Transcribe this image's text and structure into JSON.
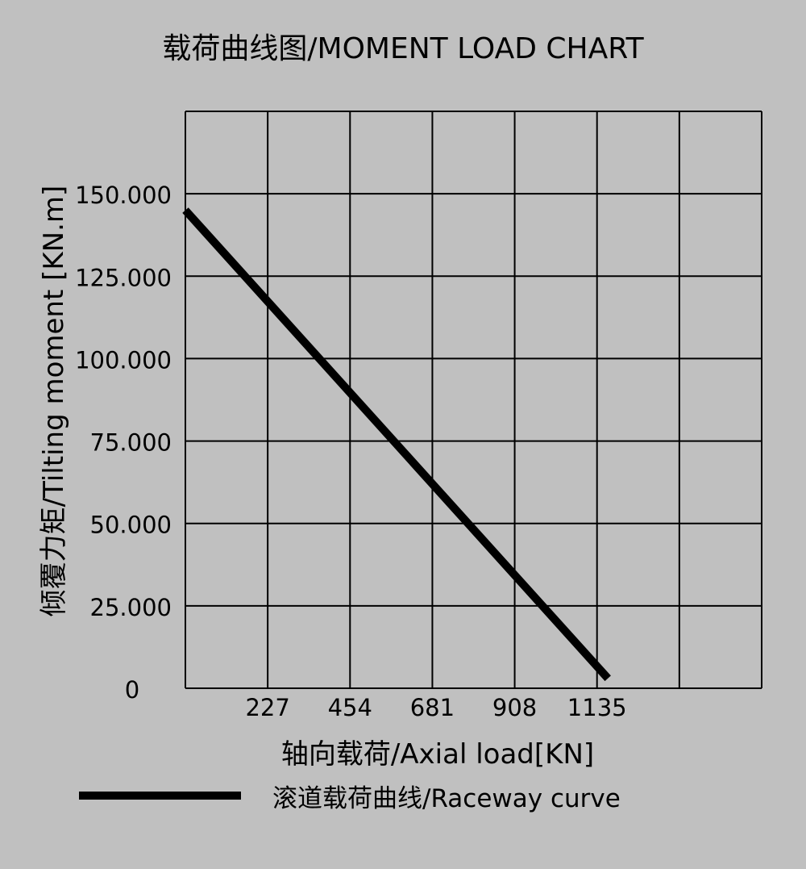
{
  "chart_data": {
    "type": "line",
    "title": "载荷曲线图/MOMENT LOAD CHART",
    "xlabel": "轴向载荷/Axial load[KN]",
    "ylabel": "倾覆力矩/Tilting moment [KN.m]",
    "x_ticks": [
      227,
      454,
      681,
      908,
      1135
    ],
    "x_tick_labels": [
      "227",
      "454",
      "681",
      "908",
      "1135"
    ],
    "y_ticks": [
      0,
      25,
      50,
      75,
      100,
      125,
      150
    ],
    "y_tick_labels": [
      "0",
      "25.000",
      "50.000",
      "75.000",
      "100.000",
      "125.000",
      "150.000"
    ],
    "xlim": [
      0,
      1589
    ],
    "ylim": [
      0,
      175
    ],
    "grid": true,
    "legend_position": "bottom",
    "series": [
      {
        "name": "滚道载荷曲线/Raceway curve",
        "color": "#000000",
        "x": [
          0,
          1165
        ],
        "y": [
          145,
          3
        ]
      }
    ]
  },
  "colors": {
    "background": "#c0c0c0",
    "grid": "#000000"
  }
}
